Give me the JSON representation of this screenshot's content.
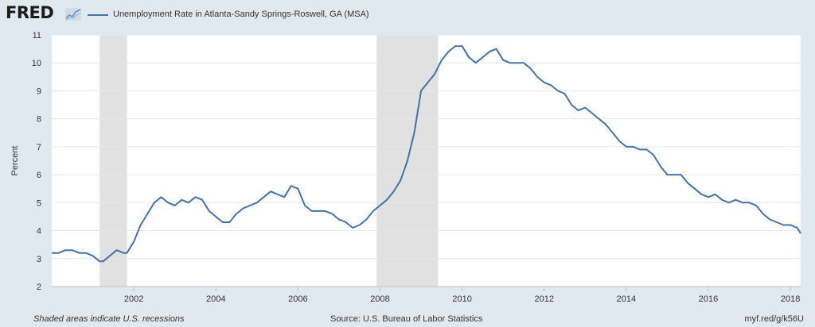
{
  "header": {
    "logo_text": "FRED",
    "logo_icon": "chart-line-icon",
    "legend_label": "Unemployment Rate in Atlanta-Sandy Springs-Roswell, GA (MSA)"
  },
  "footer": {
    "note": "Shaded areas indicate U.S. recessions",
    "source": "Source: U.S. Bureau of Labor Statistics",
    "link": "myf.red/g/k56U"
  },
  "chart_data": {
    "type": "line",
    "title": "",
    "xlabel": "",
    "ylabel": "Percent",
    "xlim": [
      "2000-01-01",
      "2018-04-01"
    ],
    "ylim": [
      2,
      11
    ],
    "y_ticks": [
      2,
      3,
      4,
      5,
      6,
      7,
      8,
      9,
      10,
      11
    ],
    "x_ticks": [
      {
        "date": "2002-01-01",
        "label": "2002"
      },
      {
        "date": "2004-01-01",
        "label": "2004"
      },
      {
        "date": "2006-01-01",
        "label": "2006"
      },
      {
        "date": "2008-01-01",
        "label": "2008"
      },
      {
        "date": "2010-01-01",
        "label": "2010"
      },
      {
        "date": "2012-01-01",
        "label": "2012"
      },
      {
        "date": "2014-01-01",
        "label": "2014"
      },
      {
        "date": "2016-01-01",
        "label": "2016"
      },
      {
        "date": "2018-01-01",
        "label": "2018"
      }
    ],
    "grid": "horizontal",
    "legend": "top-left",
    "line_color": "#4572a7",
    "recession_color": "#e1e1e1",
    "recessions": [
      {
        "start": "2001-03-01",
        "end": "2001-11-01"
      },
      {
        "start": "2007-12-01",
        "end": "2009-06-01"
      }
    ],
    "series": [
      {
        "name": "Unemployment Rate in Atlanta-Sandy Springs-Roswell, GA (MSA)",
        "points": [
          [
            "2000-01-01",
            3.2
          ],
          [
            "2000-03-01",
            3.2
          ],
          [
            "2000-05-01",
            3.3
          ],
          [
            "2000-07-01",
            3.3
          ],
          [
            "2000-09-01",
            3.2
          ],
          [
            "2000-11-01",
            3.2
          ],
          [
            "2001-01-01",
            3.1
          ],
          [
            "2001-03-01",
            2.9
          ],
          [
            "2001-04-01",
            2.9
          ],
          [
            "2001-06-01",
            3.1
          ],
          [
            "2001-08-01",
            3.3
          ],
          [
            "2001-10-01",
            3.2
          ],
          [
            "2001-11-01",
            3.2
          ],
          [
            "2002-01-01",
            3.6
          ],
          [
            "2002-03-01",
            4.2
          ],
          [
            "2002-05-01",
            4.6
          ],
          [
            "2002-07-01",
            5.0
          ],
          [
            "2002-09-01",
            5.2
          ],
          [
            "2002-11-01",
            5.0
          ],
          [
            "2003-01-01",
            4.9
          ],
          [
            "2003-03-01",
            5.1
          ],
          [
            "2003-05-01",
            5.0
          ],
          [
            "2003-07-01",
            5.2
          ],
          [
            "2003-09-01",
            5.1
          ],
          [
            "2003-11-01",
            4.7
          ],
          [
            "2004-01-01",
            4.5
          ],
          [
            "2004-03-01",
            4.3
          ],
          [
            "2004-05-01",
            4.3
          ],
          [
            "2004-07-01",
            4.6
          ],
          [
            "2004-09-01",
            4.8
          ],
          [
            "2004-11-01",
            4.9
          ],
          [
            "2005-01-01",
            5.0
          ],
          [
            "2005-03-01",
            5.2
          ],
          [
            "2005-05-01",
            5.4
          ],
          [
            "2005-07-01",
            5.3
          ],
          [
            "2005-09-01",
            5.2
          ],
          [
            "2005-11-01",
            5.6
          ],
          [
            "2006-01-01",
            5.5
          ],
          [
            "2006-03-01",
            4.9
          ],
          [
            "2006-05-01",
            4.7
          ],
          [
            "2006-07-01",
            4.7
          ],
          [
            "2006-09-01",
            4.7
          ],
          [
            "2006-11-01",
            4.6
          ],
          [
            "2007-01-01",
            4.4
          ],
          [
            "2007-03-01",
            4.3
          ],
          [
            "2007-05-01",
            4.1
          ],
          [
            "2007-07-01",
            4.2
          ],
          [
            "2007-09-01",
            4.4
          ],
          [
            "2007-11-01",
            4.7
          ],
          [
            "2008-01-01",
            4.9
          ],
          [
            "2008-03-01",
            5.1
          ],
          [
            "2008-05-01",
            5.4
          ],
          [
            "2008-07-01",
            5.8
          ],
          [
            "2008-09-01",
            6.5
          ],
          [
            "2008-11-01",
            7.5
          ],
          [
            "2009-01-01",
            9.0
          ],
          [
            "2009-03-01",
            9.3
          ],
          [
            "2009-05-01",
            9.6
          ],
          [
            "2009-07-01",
            10.1
          ],
          [
            "2009-09-01",
            10.4
          ],
          [
            "2009-11-01",
            10.6
          ],
          [
            "2010-01-01",
            10.6
          ],
          [
            "2010-03-01",
            10.2
          ],
          [
            "2010-05-01",
            10.0
          ],
          [
            "2010-07-01",
            10.2
          ],
          [
            "2010-09-01",
            10.4
          ],
          [
            "2010-11-01",
            10.5
          ],
          [
            "2011-01-01",
            10.1
          ],
          [
            "2011-03-01",
            10.0
          ],
          [
            "2011-05-01",
            10.0
          ],
          [
            "2011-07-01",
            10.0
          ],
          [
            "2011-09-01",
            9.8
          ],
          [
            "2011-11-01",
            9.5
          ],
          [
            "2012-01-01",
            9.3
          ],
          [
            "2012-03-01",
            9.2
          ],
          [
            "2012-05-01",
            9.0
          ],
          [
            "2012-07-01",
            8.9
          ],
          [
            "2012-09-01",
            8.5
          ],
          [
            "2012-11-01",
            8.3
          ],
          [
            "2013-01-01",
            8.4
          ],
          [
            "2013-03-01",
            8.2
          ],
          [
            "2013-05-01",
            8.0
          ],
          [
            "2013-07-01",
            7.8
          ],
          [
            "2013-09-01",
            7.5
          ],
          [
            "2013-11-01",
            7.2
          ],
          [
            "2014-01-01",
            7.0
          ],
          [
            "2014-03-01",
            7.0
          ],
          [
            "2014-05-01",
            6.9
          ],
          [
            "2014-07-01",
            6.9
          ],
          [
            "2014-09-01",
            6.7
          ],
          [
            "2014-11-01",
            6.3
          ],
          [
            "2015-01-01",
            6.0
          ],
          [
            "2015-03-01",
            6.0
          ],
          [
            "2015-05-01",
            6.0
          ],
          [
            "2015-07-01",
            5.7
          ],
          [
            "2015-09-01",
            5.5
          ],
          [
            "2015-11-01",
            5.3
          ],
          [
            "2016-01-01",
            5.2
          ],
          [
            "2016-03-01",
            5.3
          ],
          [
            "2016-05-01",
            5.1
          ],
          [
            "2016-07-01",
            5.0
          ],
          [
            "2016-09-01",
            5.1
          ],
          [
            "2016-11-01",
            5.0
          ],
          [
            "2017-01-01",
            5.0
          ],
          [
            "2017-03-01",
            4.9
          ],
          [
            "2017-05-01",
            4.6
          ],
          [
            "2017-07-01",
            4.4
          ],
          [
            "2017-09-01",
            4.3
          ],
          [
            "2017-11-01",
            4.2
          ],
          [
            "2018-01-01",
            4.2
          ],
          [
            "2018-03-01",
            4.1
          ],
          [
            "2018-04-01",
            3.9
          ]
        ]
      }
    ]
  }
}
